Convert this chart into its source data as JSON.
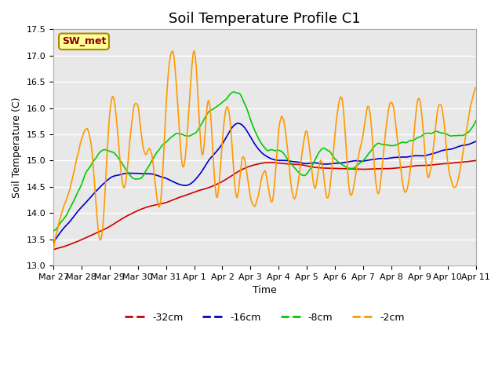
{
  "title": "Soil Temperature Profile C1",
  "xlabel": "Time",
  "ylabel": "Soil Temperature (C)",
  "ylim": [
    13.0,
    17.5
  ],
  "annotation_text": "SW_met",
  "annotation_bg": "#ffff99",
  "annotation_edge": "#aa8800",
  "annotation_text_color": "#880000",
  "legend_labels": [
    "-32cm",
    "-16cm",
    "-8cm",
    "-2cm"
  ],
  "line_colors": [
    "#cc0000",
    "#0000cc",
    "#00cc00",
    "#ff9900"
  ],
  "xtick_labels": [
    "Mar 27",
    "Mar 28",
    "Mar 29",
    "Mar 30",
    "Mar 31",
    "Apr 1",
    "Apr 2",
    "Apr 3",
    "Apr 4",
    "Apr 5",
    "Apr 6",
    "Apr 7",
    "Apr 8",
    "Apr 9",
    "Apr 10",
    "Apr 11"
  ],
  "ytick_vals": [
    13.0,
    13.5,
    14.0,
    14.5,
    15.0,
    15.5,
    16.0,
    16.5,
    17.0,
    17.5
  ],
  "title_fontsize": 13,
  "axis_fontsize": 9,
  "tick_fontsize": 8,
  "legend_fontsize": 9
}
